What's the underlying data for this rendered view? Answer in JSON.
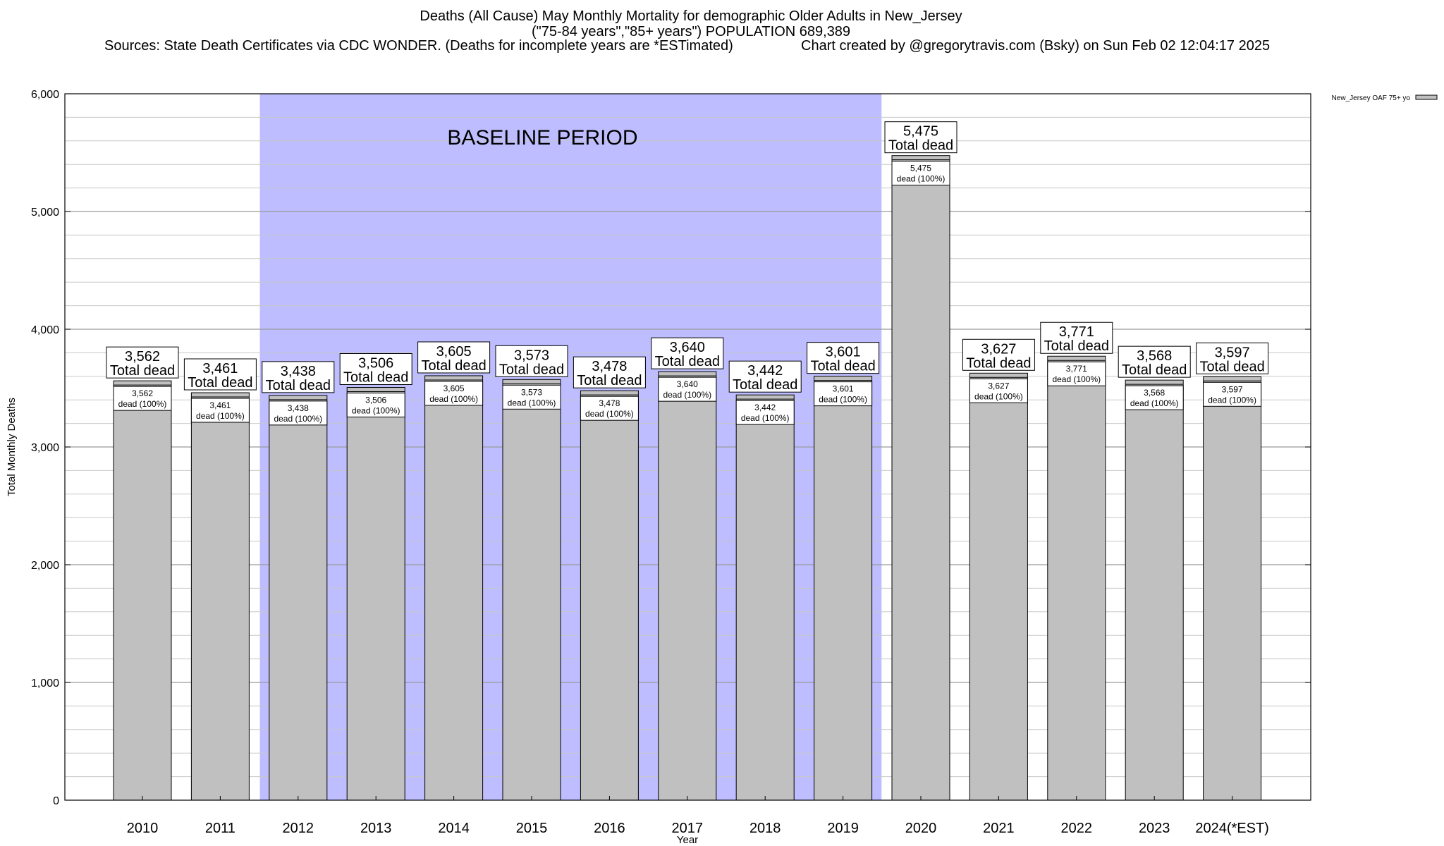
{
  "header": {
    "title_line1": "Deaths (All Cause) May Monthly Mortality for demographic Older Adults in New_Jersey",
    "title_line2": "(\"75-84 years\",\"85+ years\") POPULATION 689,389",
    "sources": "Sources: State Death Certificates via CDC WONDER. (Deaths for incomplete years are *ESTimated)",
    "credit": "Chart created by @gregorytravis.com (Bsky) on Sun Feb 02 12:04:17 2025"
  },
  "chart_data": {
    "type": "bar",
    "categories": [
      "2010",
      "2011",
      "2012",
      "2013",
      "2014",
      "2015",
      "2016",
      "2017",
      "2018",
      "2019",
      "2020",
      "2021",
      "2022",
      "2023",
      "2024(*EST)"
    ],
    "series": [
      {
        "name": "New_Jersey OAF 75+ yo",
        "values": [
          3562,
          3461,
          3438,
          3506,
          3605,
          3573,
          3478,
          3640,
          3442,
          3601,
          5475,
          3627,
          3771,
          3568,
          3597
        ]
      }
    ],
    "total_labels": [
      "3,562",
      "3,461",
      "3,438",
      "3,506",
      "3,605",
      "3,573",
      "3,478",
      "3,640",
      "3,442",
      "3,601",
      "5,475",
      "3,627",
      "3,771",
      "3,568",
      "3,597"
    ],
    "total_suffix": "Total dead",
    "segment_suffix": "dead (100%)",
    "xlabel": "Year",
    "ylabel": "Total Monthly Deaths",
    "ylim": [
      0,
      6000
    ],
    "yticks": [
      0,
      1000,
      2000,
      3000,
      4000,
      5000,
      6000
    ],
    "ytick_labels": [
      "0",
      "1,000",
      "2,000",
      "3,000",
      "4,000",
      "5,000",
      "6,000"
    ],
    "minor_grid_step": 200,
    "grid": true,
    "legend_position": "top-right",
    "baseline_period": {
      "label": "BASELINE PERIOD",
      "start": "2012",
      "end": "2019",
      "color": "#bdbdff"
    },
    "bar_color": "#c0c0c0"
  }
}
